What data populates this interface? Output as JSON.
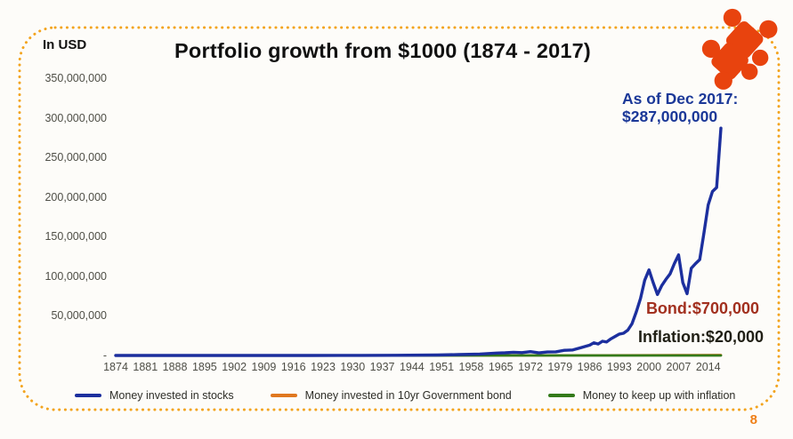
{
  "slide": {
    "page_number": "8",
    "border_color": "#F3A41E",
    "page_number_color": "#EF7F16",
    "background_color": "#FDFCF9"
  },
  "header": {
    "y_axis_unit": "In USD",
    "title": "Portfolio growth from $1000 (1874 - 2017)"
  },
  "icons": {
    "puzzle": {
      "name": "puzzle-icon",
      "color": "#E8430E"
    }
  },
  "annotations": {
    "stocks": {
      "line1": "As of Dec 2017:",
      "line2": "$287,000,000",
      "color": "#1B3898"
    },
    "bond": {
      "text": "Bond:$700,000",
      "color": "#A2301F"
    },
    "inflation": {
      "text": "Inflation:$20,000",
      "color": "#201F15"
    }
  },
  "chart_data": {
    "type": "line",
    "title": "Portfolio growth from $1000 (1874 - 2017)",
    "xlabel": "",
    "ylabel": "In USD",
    "xlim": [
      1874,
      2017
    ],
    "ylim": [
      0,
      350000000
    ],
    "grid": false,
    "legend_position": "bottom",
    "y_ticks": [
      {
        "value": 350000000,
        "label": "350,000,000"
      },
      {
        "value": 300000000,
        "label": "300,000,000"
      },
      {
        "value": 250000000,
        "label": "250,000,000"
      },
      {
        "value": 200000000,
        "label": "200,000,000"
      },
      {
        "value": 150000000,
        "label": "150,000,000"
      },
      {
        "value": 100000000,
        "label": "100,000,000"
      },
      {
        "value": 50000000,
        "label": "50,000,000"
      },
      {
        "value": 0,
        "label": "-"
      }
    ],
    "x_tick_labels": [
      "1874",
      "1881",
      "1888",
      "1895",
      "1902",
      "1909",
      "1916",
      "1923",
      "1930",
      "1937",
      "1944",
      "1951",
      "1958",
      "1965",
      "1972",
      "1979",
      "1986",
      "1993",
      "2000",
      "2007",
      "2014"
    ],
    "series": [
      {
        "name": "Money invested in stocks",
        "color": "#1C2F9E",
        "final_value_usd": 287000000,
        "points": [
          [
            1874,
            1000
          ],
          [
            1890,
            5000
          ],
          [
            1900,
            12000
          ],
          [
            1910,
            25000
          ],
          [
            1920,
            40000
          ],
          [
            1929,
            150000
          ],
          [
            1932,
            70000
          ],
          [
            1940,
            200000
          ],
          [
            1950,
            600000
          ],
          [
            1955,
            1100000
          ],
          [
            1960,
            1800000
          ],
          [
            1964,
            3000000
          ],
          [
            1966,
            3400000
          ],
          [
            1968,
            4000000
          ],
          [
            1970,
            3600000
          ],
          [
            1972,
            4800000
          ],
          [
            1974,
            3200000
          ],
          [
            1976,
            4400000
          ],
          [
            1978,
            4600000
          ],
          [
            1980,
            6500000
          ],
          [
            1982,
            7000000
          ],
          [
            1984,
            10000000
          ],
          [
            1986,
            13000000
          ],
          [
            1987,
            16000000
          ],
          [
            1988,
            14500000
          ],
          [
            1989,
            18000000
          ],
          [
            1990,
            17000000
          ],
          [
            1991,
            21000000
          ],
          [
            1992,
            24000000
          ],
          [
            1993,
            27000000
          ],
          [
            1994,
            28000000
          ],
          [
            1995,
            32000000
          ],
          [
            1996,
            40000000
          ],
          [
            1997,
            55000000
          ],
          [
            1998,
            72000000
          ],
          [
            1999,
            95000000
          ],
          [
            2000,
            108000000
          ],
          [
            2001,
            92000000
          ],
          [
            2002,
            77000000
          ],
          [
            2003,
            88000000
          ],
          [
            2004,
            96000000
          ],
          [
            2005,
            103000000
          ],
          [
            2006,
            116000000
          ],
          [
            2007,
            127000000
          ],
          [
            2008,
            92000000
          ],
          [
            2009,
            78000000
          ],
          [
            2010,
            110000000
          ],
          [
            2011,
            116000000
          ],
          [
            2012,
            121000000
          ],
          [
            2013,
            155000000
          ],
          [
            2014,
            190000000
          ],
          [
            2015,
            207000000
          ],
          [
            2016,
            212000000
          ],
          [
            2017,
            287000000
          ]
        ]
      },
      {
        "name": "Money invested in 10yr Government bond",
        "color": "#E0771F",
        "final_value_usd": 700000,
        "points": [
          [
            1874,
            1000
          ],
          [
            1900,
            2500
          ],
          [
            1925,
            6000
          ],
          [
            1950,
            15000
          ],
          [
            1975,
            60000
          ],
          [
            1990,
            180000
          ],
          [
            2000,
            350000
          ],
          [
            2010,
            550000
          ],
          [
            2017,
            700000
          ]
        ]
      },
      {
        "name": "Money to keep up with inflation",
        "color": "#337A1A",
        "final_value_usd": 20000,
        "points": [
          [
            1874,
            1000
          ],
          [
            1915,
            2000
          ],
          [
            1945,
            3500
          ],
          [
            1970,
            7000
          ],
          [
            1990,
            13000
          ],
          [
            2005,
            17000
          ],
          [
            2017,
            20000
          ]
        ]
      }
    ]
  }
}
